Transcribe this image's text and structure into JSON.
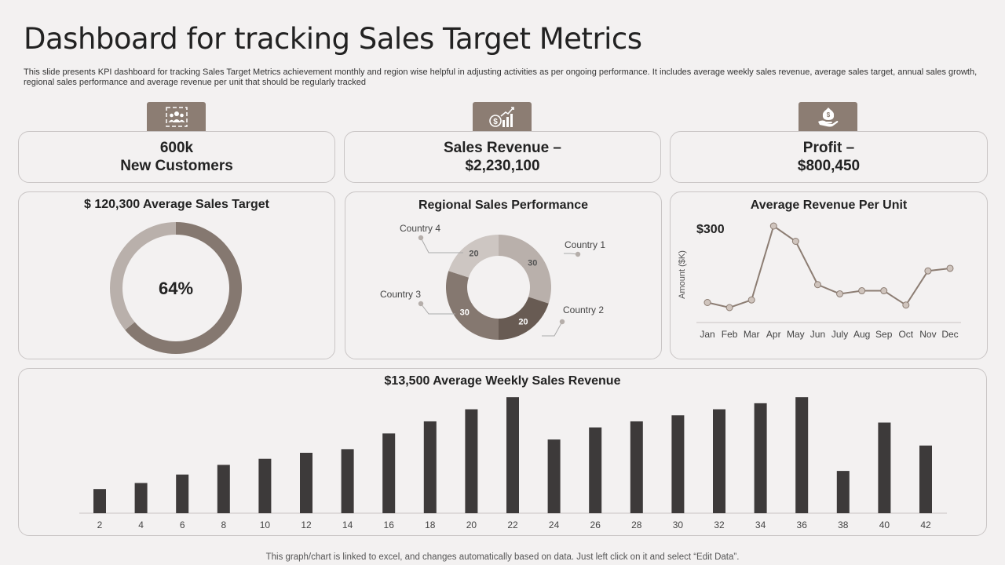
{
  "header": {
    "title": "Dashboard for tracking Sales Target Metrics",
    "subtitle": "This slide presents KPI dashboard for tracking Sales Target Metrics achievement monthly and region wise helpful in adjusting activities as per ongoing performance. It includes average weekly sales revenue, average sales target, annual sales growth, regional sales performance and average revenue per unit that should be regularly tracked"
  },
  "colors": {
    "accent": "#8c7d73",
    "bar": "#3d3a3a",
    "donut_light": "#b9b0ab",
    "donut_dark": "#857870"
  },
  "kpis": {
    "customers": {
      "line1": "600k",
      "line2": "New Customers",
      "icon": "team-icon"
    },
    "revenue": {
      "line1": "Sales Revenue –",
      "line2": "$2,230,100",
      "icon": "growth-chart-icon"
    },
    "profit": {
      "line1": "Profit –",
      "line2": "$800,450",
      "icon": "money-hand-icon"
    }
  },
  "footer": "This graph/chart is linked to excel,  and changes automatically based on data. Just left click on it and select “Edit Data”.",
  "chart_data": [
    {
      "type": "pie",
      "title": "$ 120,300 Average Sales Target",
      "center_label": "64%",
      "values": [
        64,
        36
      ]
    },
    {
      "type": "pie",
      "title": "Regional Sales Performance",
      "categories": [
        "Country 1",
        "Country 2",
        "Country 3",
        "Country 4"
      ],
      "values": [
        30,
        20,
        30,
        20
      ],
      "colors": [
        "#b9b0ab",
        "#685b53",
        "#857870",
        "#cdc6c2"
      ]
    },
    {
      "type": "line",
      "title": "Average Revenue Per Unit",
      "annotation": "$300",
      "ylabel": "Amount ($K)",
      "x": [
        "Jan",
        "Feb",
        "Mar",
        "Apr",
        "May",
        "Jun",
        "July",
        "Aug",
        "Sep",
        "Oct",
        "Nov",
        "Dec"
      ],
      "y": [
        30,
        20,
        35,
        180,
        150,
        65,
        47,
        53,
        53,
        25,
        92,
        97
      ],
      "ylim": [
        0,
        200
      ]
    },
    {
      "type": "bar",
      "title": "$13,500 Average Weekly Sales Revenue",
      "categories": [
        "2",
        "4",
        "6",
        "8",
        "10",
        "12",
        "14",
        "16",
        "18",
        "20",
        "22",
        "24",
        "26",
        "28",
        "30",
        "32",
        "34",
        "36",
        "38",
        "40",
        "42"
      ],
      "values": [
        20,
        25,
        32,
        40,
        45,
        50,
        53,
        66,
        76,
        86,
        96,
        61,
        71,
        76,
        81,
        86,
        91,
        96,
        35,
        75,
        56
      ],
      "ylim": [
        0,
        100
      ]
    }
  ]
}
